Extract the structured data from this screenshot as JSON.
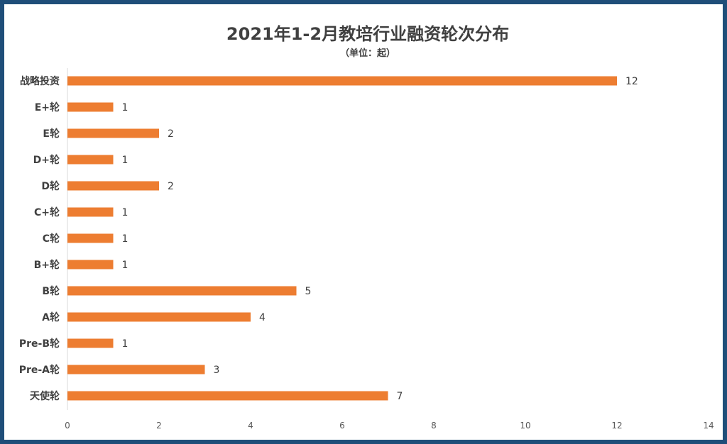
{
  "colors": {
    "bar": "#ed7d31",
    "frame": "#1f4e79",
    "text": "#404040"
  },
  "chart_data": {
    "type": "bar",
    "orientation": "horizontal",
    "title": "2021年1-2月教培行业融资轮次分布",
    "subtitle": "（单位：起）",
    "categories": [
      "战略投资",
      "E+轮",
      "E轮",
      "D+轮",
      "D轮",
      "C+轮",
      "C轮",
      "B+轮",
      "B轮",
      "A轮",
      "Pre-B轮",
      "Pre-A轮",
      "天使轮"
    ],
    "values": [
      12,
      1,
      2,
      1,
      2,
      1,
      1,
      1,
      5,
      4,
      1,
      3,
      7
    ],
    "xlim": [
      0,
      14
    ],
    "xticks": [
      0,
      2,
      4,
      6,
      8,
      10,
      12,
      14
    ],
    "grid": false,
    "legend": "none"
  }
}
